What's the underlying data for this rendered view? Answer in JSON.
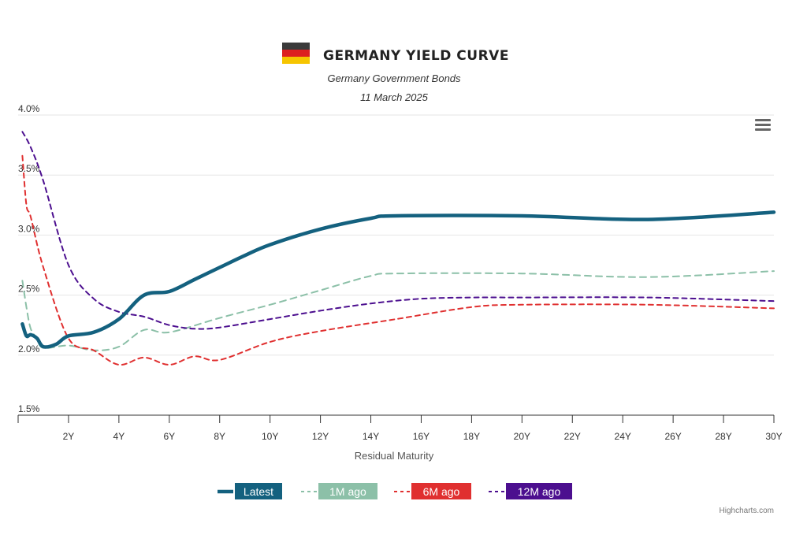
{
  "flag_icon": "germany-flag-icon",
  "menu_icon": "hamburger-menu-icon",
  "credits": "Highcharts.com",
  "chart_data": {
    "type": "line",
    "title": "GERMANY YIELD CURVE",
    "subtitle": "Germany Government Bonds",
    "date": "11 March 2025",
    "xlabel": "Residual Maturity",
    "ylabel": "",
    "xlim": [
      0,
      30
    ],
    "ylim": [
      1.5,
      4.0
    ],
    "x_ticks": [
      "2Y",
      "4Y",
      "6Y",
      "8Y",
      "10Y",
      "12Y",
      "14Y",
      "16Y",
      "18Y",
      "20Y",
      "22Y",
      "24Y",
      "26Y",
      "28Y",
      "30Y"
    ],
    "y_ticks": [
      "1.5%",
      "2.0%",
      "2.5%",
      "3.0%",
      "3.5%",
      "4.0%"
    ],
    "grid": true,
    "legend_position": "bottom",
    "series": [
      {
        "name": "Latest",
        "color": "#14617f",
        "dash": "solid",
        "points": [
          [
            0.17,
            2.26
          ],
          [
            0.33,
            2.16
          ],
          [
            0.5,
            2.17
          ],
          [
            0.75,
            2.14
          ],
          [
            1,
            2.07
          ],
          [
            1.5,
            2.09
          ],
          [
            2,
            2.16
          ],
          [
            3,
            2.19
          ],
          [
            4,
            2.3
          ],
          [
            5,
            2.5
          ],
          [
            6,
            2.53
          ],
          [
            7,
            2.63
          ],
          [
            8,
            2.73
          ],
          [
            9,
            2.83
          ],
          [
            10,
            2.92
          ],
          [
            12,
            3.05
          ],
          [
            14,
            3.14
          ],
          [
            15,
            3.16
          ],
          [
            20,
            3.16
          ],
          [
            25,
            3.13
          ],
          [
            30,
            3.19
          ]
        ]
      },
      {
        "name": "1M ago",
        "color": "#8cc0a8",
        "dash": "longdash",
        "points": [
          [
            0.17,
            2.62
          ],
          [
            0.33,
            2.4
          ],
          [
            0.5,
            2.22
          ],
          [
            0.75,
            2.14
          ],
          [
            1,
            2.06
          ],
          [
            2,
            2.08
          ],
          [
            3,
            2.04
          ],
          [
            4,
            2.07
          ],
          [
            5,
            2.21
          ],
          [
            6,
            2.19
          ],
          [
            8,
            2.31
          ],
          [
            10,
            2.42
          ],
          [
            12,
            2.54
          ],
          [
            14,
            2.66
          ],
          [
            15,
            2.68
          ],
          [
            20,
            2.68
          ],
          [
            25,
            2.65
          ],
          [
            30,
            2.7
          ]
        ]
      },
      {
        "name": "6M ago",
        "color": "#e03030",
        "dash": "dash",
        "points": [
          [
            0.17,
            3.66
          ],
          [
            0.33,
            3.25
          ],
          [
            0.5,
            3.15
          ],
          [
            1,
            2.73
          ],
          [
            2,
            2.14
          ],
          [
            3,
            2.04
          ],
          [
            4,
            1.92
          ],
          [
            5,
            1.98
          ],
          [
            6,
            1.92
          ],
          [
            7,
            1.99
          ],
          [
            8,
            1.96
          ],
          [
            10,
            2.11
          ],
          [
            12,
            2.2
          ],
          [
            15,
            2.3
          ],
          [
            18,
            2.4
          ],
          [
            20,
            2.42
          ],
          [
            25,
            2.42
          ],
          [
            30,
            2.39
          ]
        ]
      },
      {
        "name": "12M ago",
        "color": "#4c0f8f",
        "dash": "dash",
        "points": [
          [
            0.17,
            3.86
          ],
          [
            0.5,
            3.73
          ],
          [
            1,
            3.45
          ],
          [
            2,
            2.75
          ],
          [
            3,
            2.47
          ],
          [
            4,
            2.36
          ],
          [
            5,
            2.32
          ],
          [
            6,
            2.25
          ],
          [
            7,
            2.22
          ],
          [
            8,
            2.23
          ],
          [
            10,
            2.3
          ],
          [
            12,
            2.37
          ],
          [
            14,
            2.43
          ],
          [
            16,
            2.47
          ],
          [
            18,
            2.48
          ],
          [
            20,
            2.48
          ],
          [
            25,
            2.48
          ],
          [
            30,
            2.45
          ]
        ]
      }
    ]
  }
}
